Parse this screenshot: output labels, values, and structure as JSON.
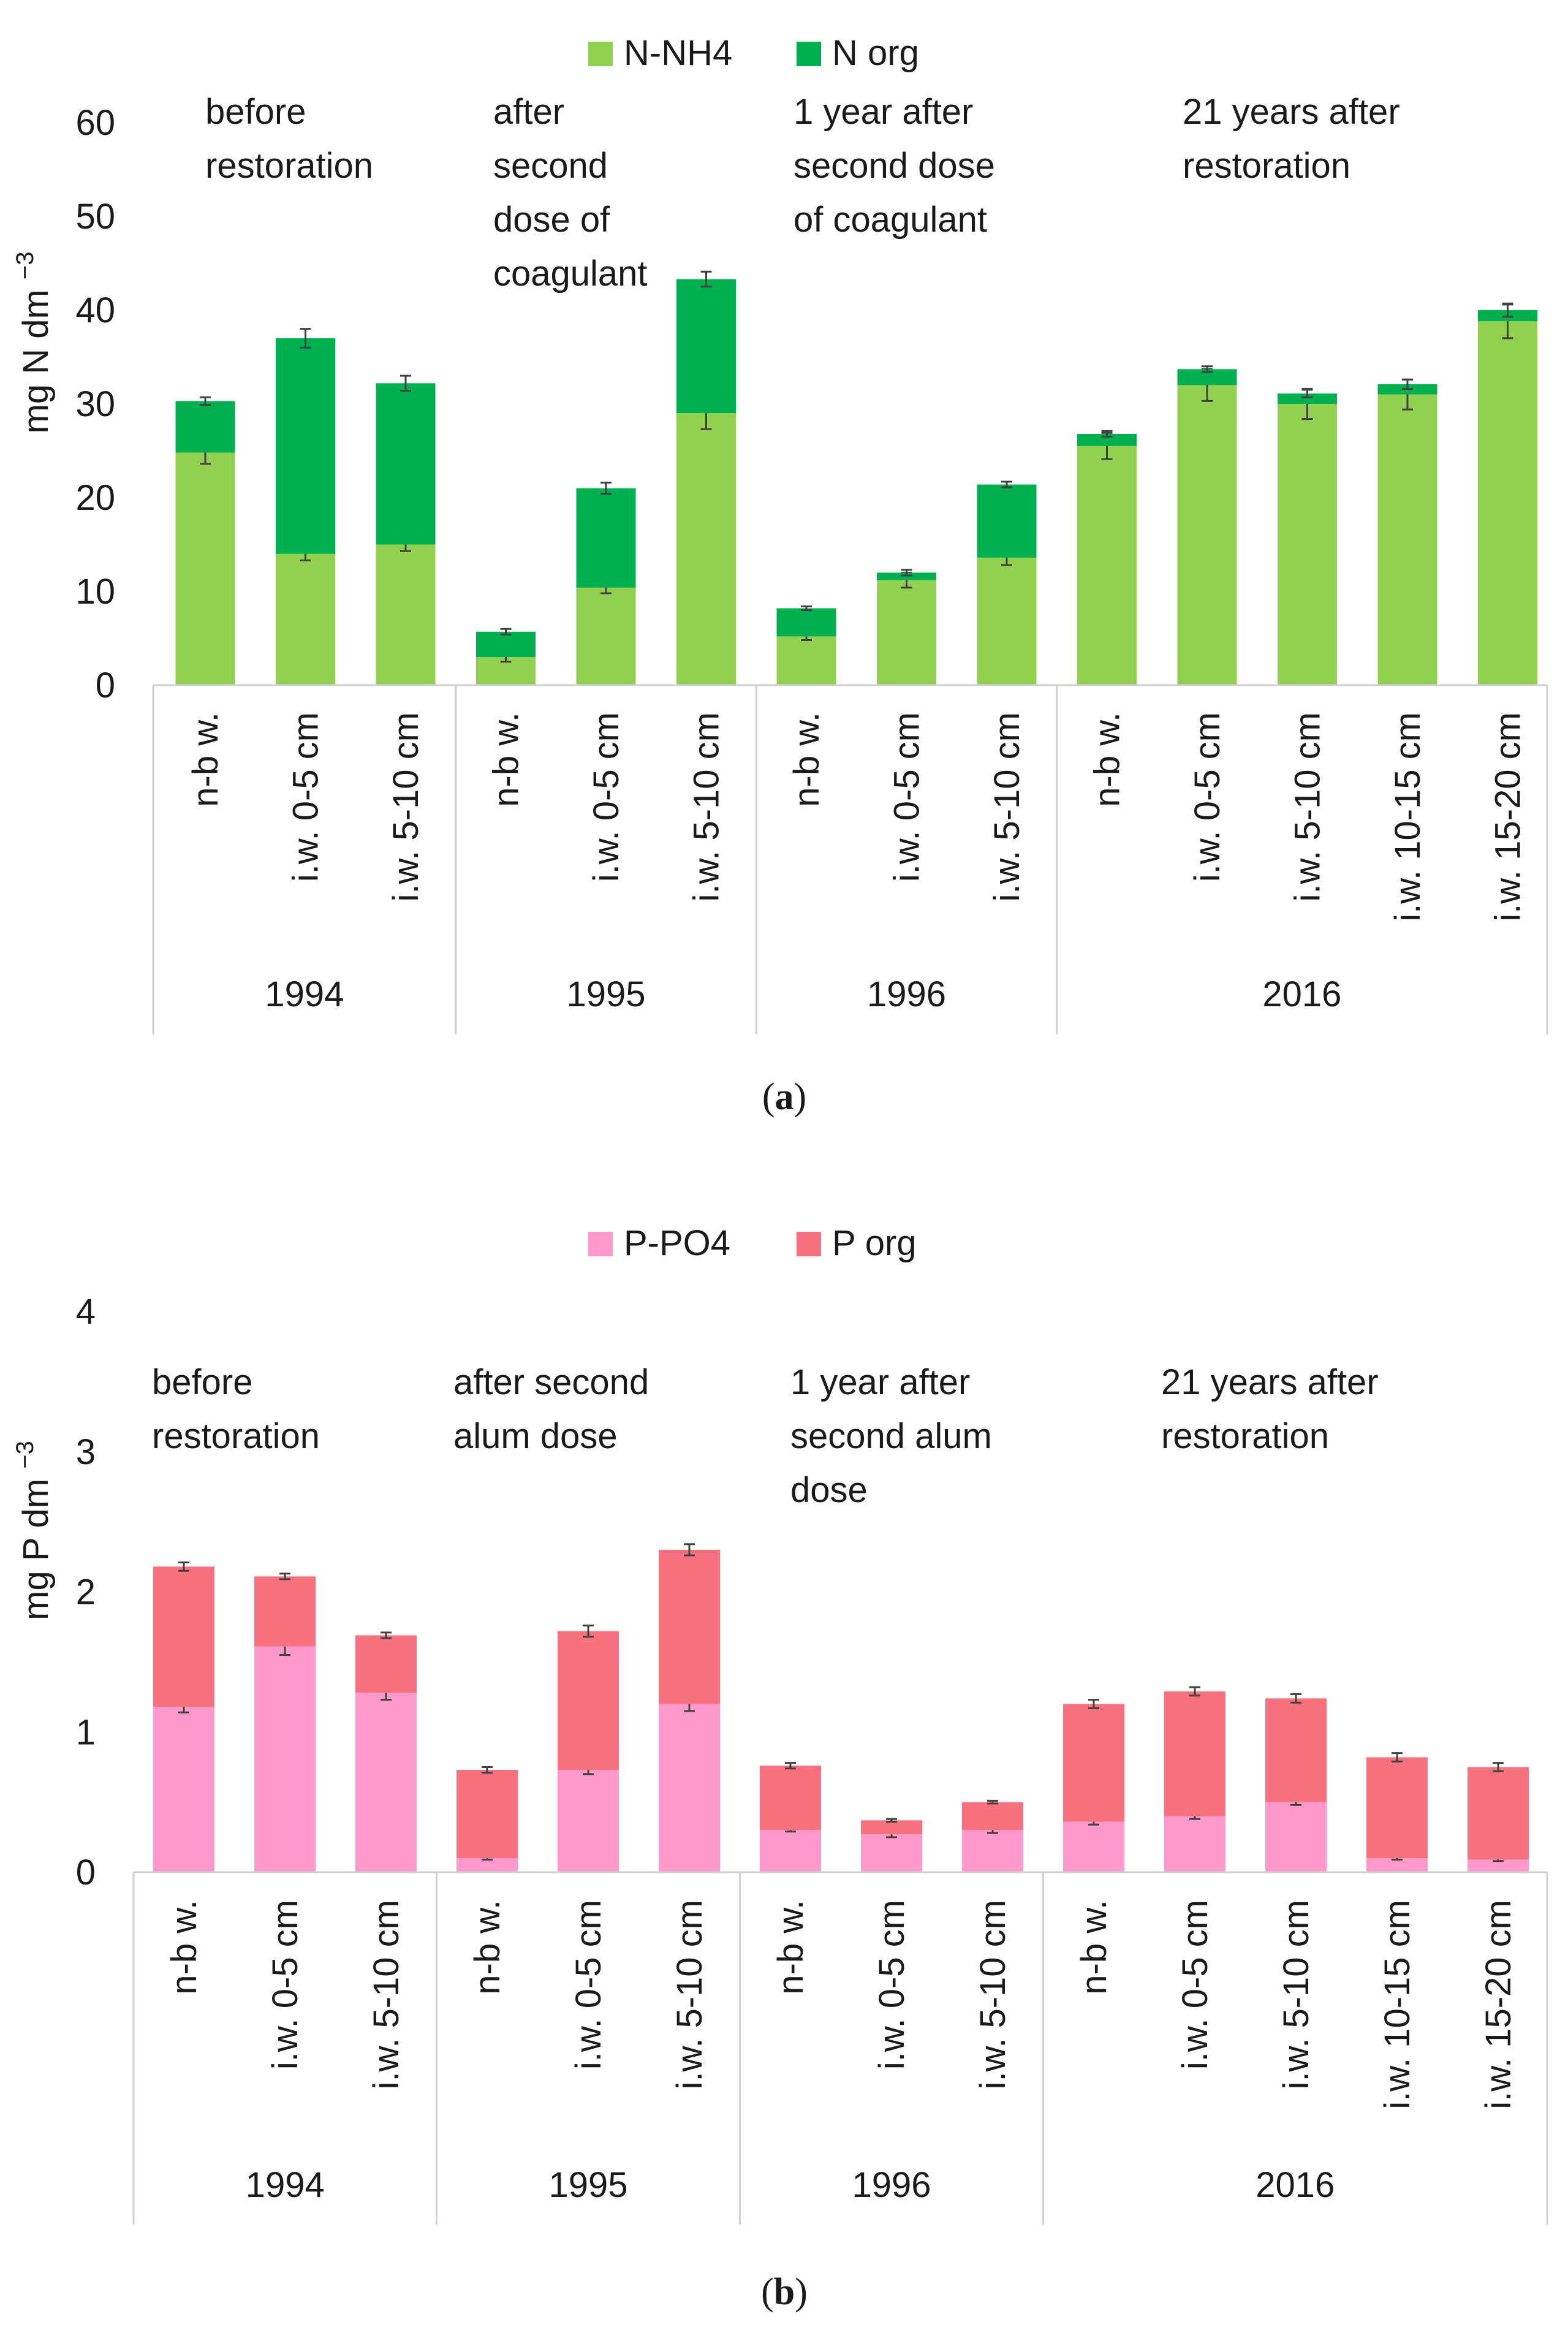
{
  "chart_data": [
    {
      "type": "bar",
      "stacked": true,
      "panel_label": "(a)",
      "ylabel": "mg N dm −3",
      "ylim": [
        0,
        60
      ],
      "yticks": [
        0,
        10,
        20,
        30,
        40,
        50,
        60
      ],
      "grid": false,
      "legend_position": "top-center",
      "categories": [
        "n-b w.",
        "i.w. 0-5 cm",
        "i.w. 5-10 cm",
        "n-b w.",
        "i.w. 0-5 cm",
        "i.w. 5-10 cm",
        "n-b w.",
        "i.w. 0-5 cm",
        "i.w. 5-10 cm",
        "n-b w.",
        "i.w. 0-5 cm",
        "i.w. 5-10 cm",
        "i.w. 10-15 cm",
        "i.w. 15-20 cm"
      ],
      "groups": [
        {
          "label": "1994",
          "count": 3
        },
        {
          "label": "1995",
          "count": 3
        },
        {
          "label": "1996",
          "count": 3
        },
        {
          "label": "2016",
          "count": 5
        }
      ],
      "annotations": [
        {
          "group": 0,
          "lines": [
            "before",
            "restoration"
          ]
        },
        {
          "group": 1,
          "lines": [
            "after",
            "second",
            "dose of",
            "coagulant"
          ]
        },
        {
          "group": 2,
          "lines": [
            "1 year after",
            "second dose",
            "of coagulant"
          ]
        },
        {
          "group": 3,
          "lines": [
            "21 years after",
            "restoration"
          ]
        }
      ],
      "series": [
        {
          "name": "N-NH4",
          "color": "#92d050",
          "values": [
            24.8,
            14.0,
            15.0,
            3.0,
            10.4,
            29.0,
            5.2,
            11.2,
            13.6,
            25.5,
            32.0,
            30.0,
            31.0,
            38.8
          ],
          "errors": [
            1.2,
            0.7,
            0.7,
            0.5,
            0.6,
            1.7,
            0.4,
            0.8,
            0.8,
            1.4,
            1.7,
            1.6,
            1.6,
            1.8
          ]
        },
        {
          "name": "N org",
          "color": "#00b050",
          "values": [
            5.5,
            23.0,
            17.2,
            2.7,
            10.6,
            14.3,
            3.0,
            0.8,
            7.8,
            1.3,
            1.7,
            1.1,
            1.1,
            1.2
          ],
          "errors": [
            0.4,
            1.0,
            0.8,
            0.3,
            0.6,
            0.8,
            0.2,
            0.3,
            0.3,
            0.3,
            0.3,
            0.4,
            0.5,
            0.7
          ]
        }
      ]
    },
    {
      "type": "bar",
      "stacked": true,
      "panel_label": "(b)",
      "ylabel": "mg P dm −3",
      "ylim": [
        0,
        4
      ],
      "yticks": [
        0,
        1,
        2,
        3,
        4
      ],
      "grid": false,
      "legend_position": "top-center",
      "categories": [
        "n-b w.",
        "i.w. 0-5 cm",
        "i.w. 5-10 cm",
        "n-b w.",
        "i.w. 0-5 cm",
        "i.w. 5-10 cm",
        "n-b w.",
        "i.w. 0-5 cm",
        "i.w. 5-10 cm",
        "n-b w.",
        "i.w. 0-5 cm",
        "i.w. 5-10 cm",
        "i.w. 10-15 cm",
        "i.w. 15-20 cm"
      ],
      "groups": [
        {
          "label": "1994",
          "count": 3
        },
        {
          "label": "1995",
          "count": 3
        },
        {
          "label": "1996",
          "count": 3
        },
        {
          "label": "2016",
          "count": 5
        }
      ],
      "annotations": [
        {
          "group": 0,
          "lines": [
            "before",
            "restoration"
          ]
        },
        {
          "group": 1,
          "lines": [
            "after second",
            "alum dose"
          ]
        },
        {
          "group": 2,
          "lines": [
            "1 year after",
            "second alum",
            "dose"
          ]
        },
        {
          "group": 3,
          "lines": [
            "21 years after",
            "restoration"
          ]
        }
      ],
      "series": [
        {
          "name": "P-PO4",
          "color": "#ff99cc",
          "values": [
            1.18,
            1.61,
            1.28,
            0.1,
            0.73,
            1.2,
            0.3,
            0.27,
            0.3,
            0.36,
            0.4,
            0.5,
            0.1,
            0.09
          ],
          "errors": [
            0.04,
            0.06,
            0.05,
            0.01,
            0.03,
            0.05,
            0.01,
            0.02,
            0.02,
            0.02,
            0.02,
            0.02,
            0.01,
            0.01
          ]
        },
        {
          "name": "P org",
          "color": "#f8717f",
          "values": [
            1.0,
            0.5,
            0.41,
            0.63,
            0.99,
            1.1,
            0.46,
            0.1,
            0.2,
            0.84,
            0.89,
            0.74,
            0.72,
            0.66
          ],
          "errors": [
            0.03,
            0.02,
            0.02,
            0.02,
            0.04,
            0.04,
            0.02,
            0.01,
            0.01,
            0.03,
            0.03,
            0.03,
            0.03,
            0.03
          ]
        }
      ]
    }
  ]
}
